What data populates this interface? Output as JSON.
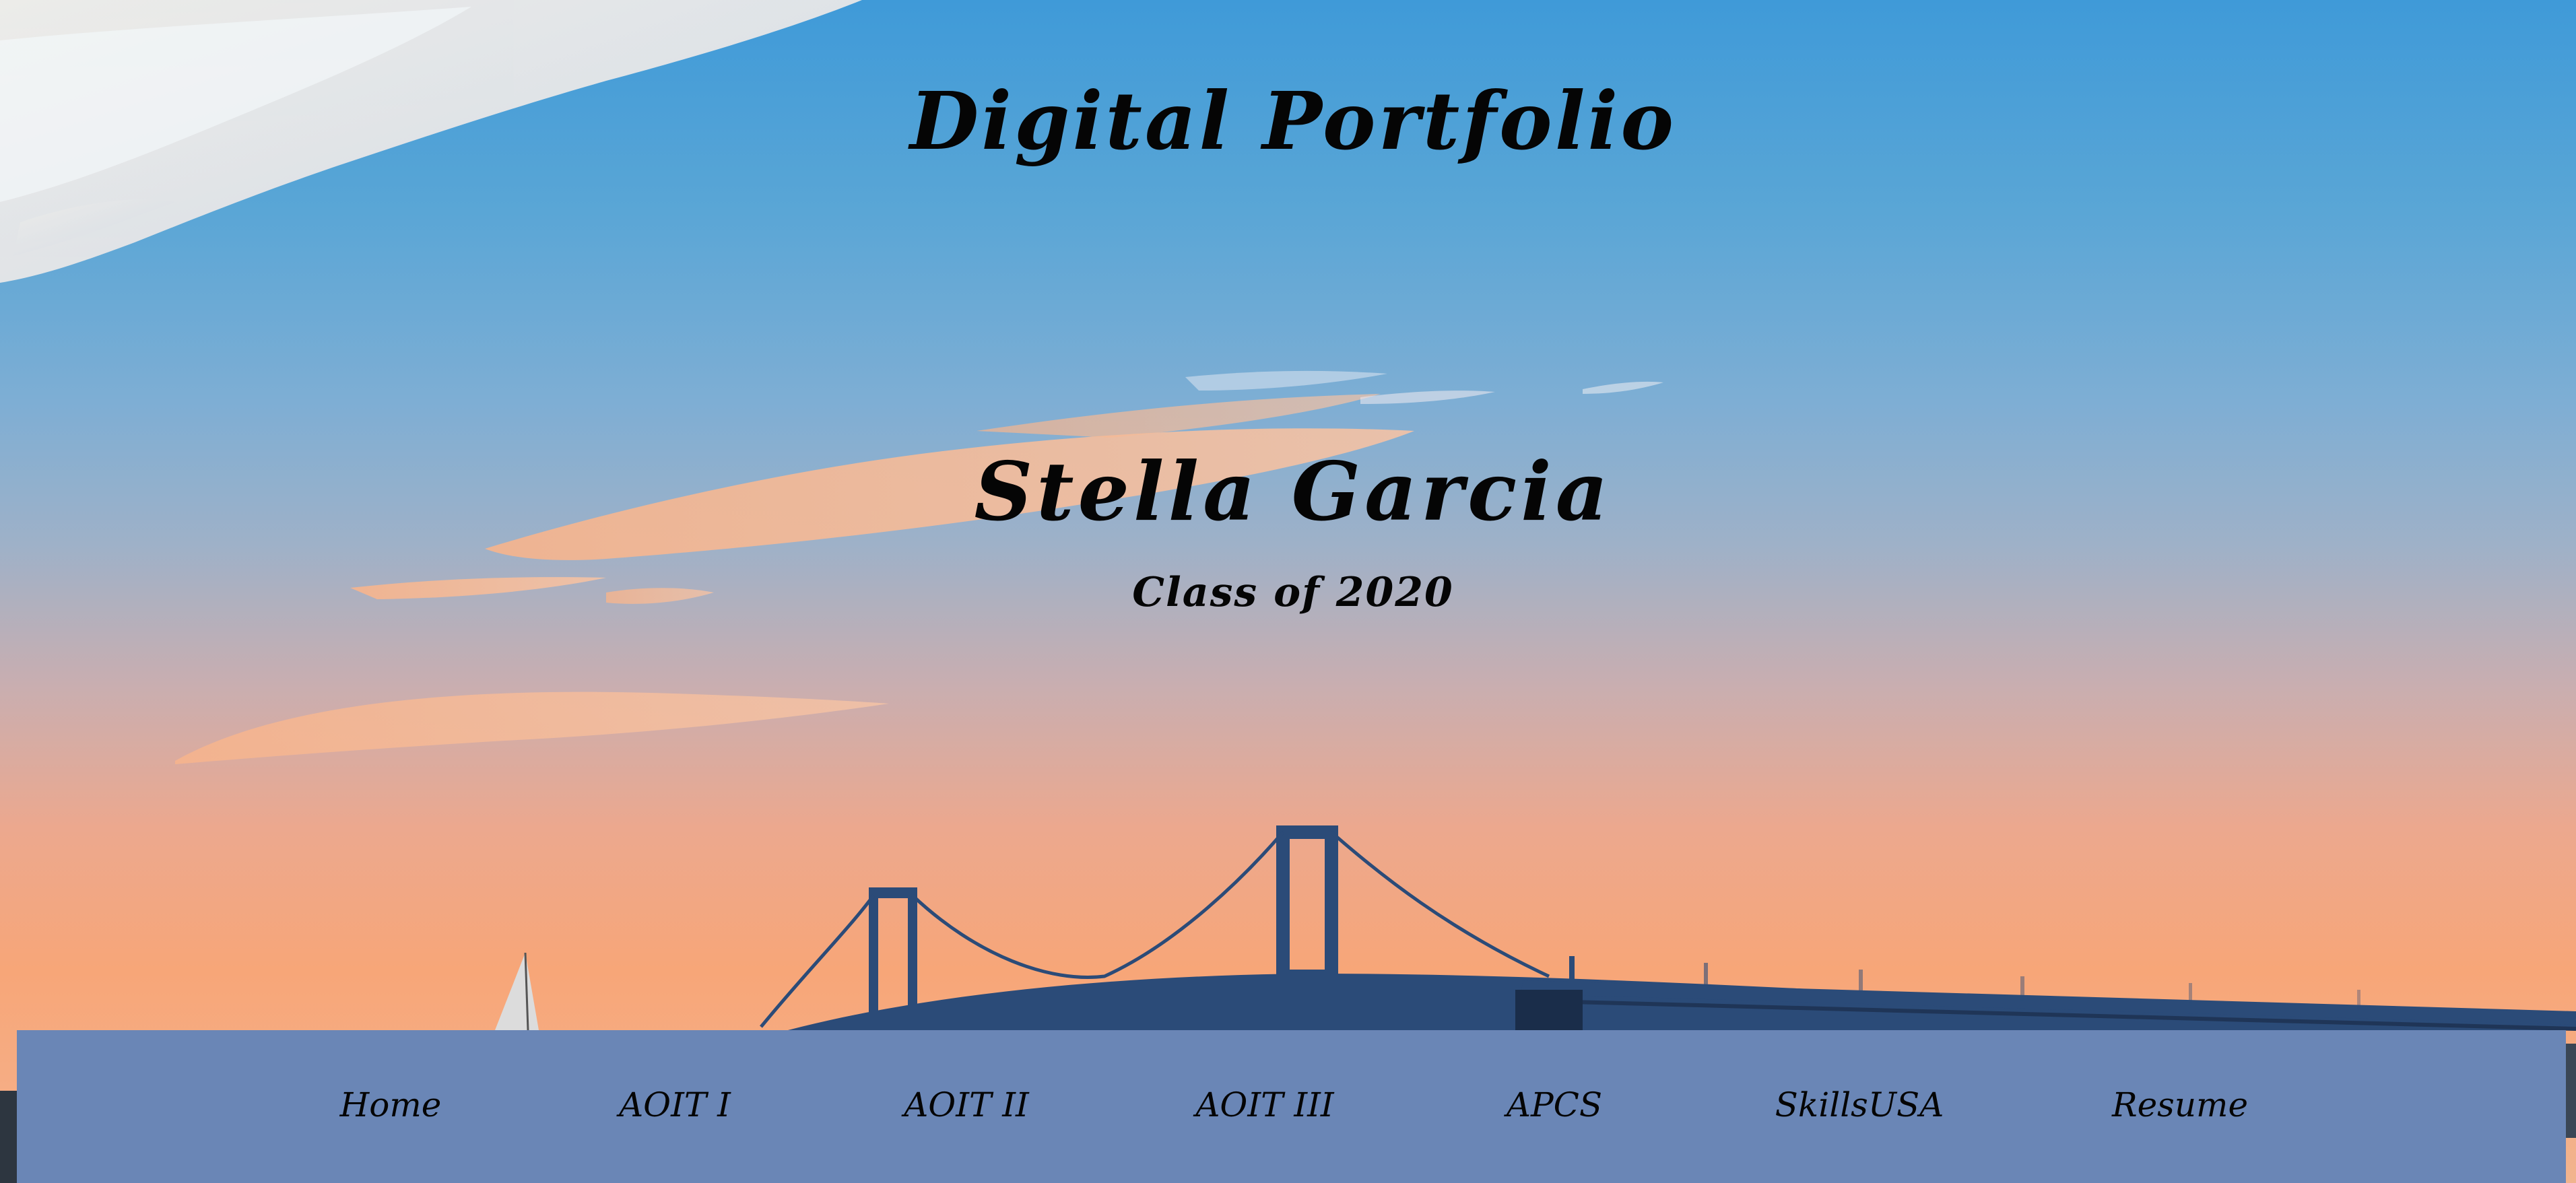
{
  "header": {
    "title": "Digital Portfolio",
    "name": "Stella Garcia",
    "subtitle": "Class of 2020"
  },
  "nav": {
    "items": [
      {
        "label": "Home"
      },
      {
        "label": "AOIT I"
      },
      {
        "label": "AOIT II"
      },
      {
        "label": "AOIT III"
      },
      {
        "label": "APCS"
      },
      {
        "label": "SkillsUSA"
      },
      {
        "label": "Resume"
      }
    ]
  },
  "colors": {
    "nav_background": "#6a86b6",
    "text": "#050505"
  }
}
